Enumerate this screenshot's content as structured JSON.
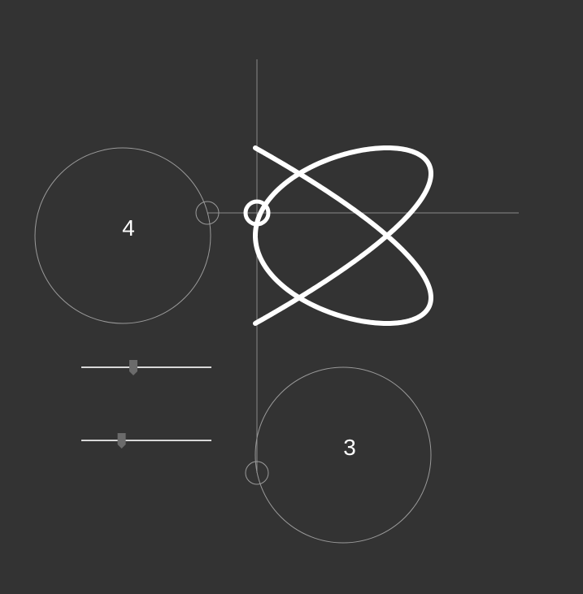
{
  "x_frequency": {
    "value": 4,
    "label": "4"
  },
  "y_frequency": {
    "value": 3,
    "label": "3"
  },
  "sliders": [
    {
      "name": "x-frequency-slider",
      "level": 0.4
    },
    {
      "name": "y-frequency-slider",
      "level": 0.31
    }
  ],
  "colors": {
    "background": "#333333",
    "curve": "#ffffff",
    "guide": "#8a8a8a",
    "slider_thumb": "#6b6b6b"
  }
}
